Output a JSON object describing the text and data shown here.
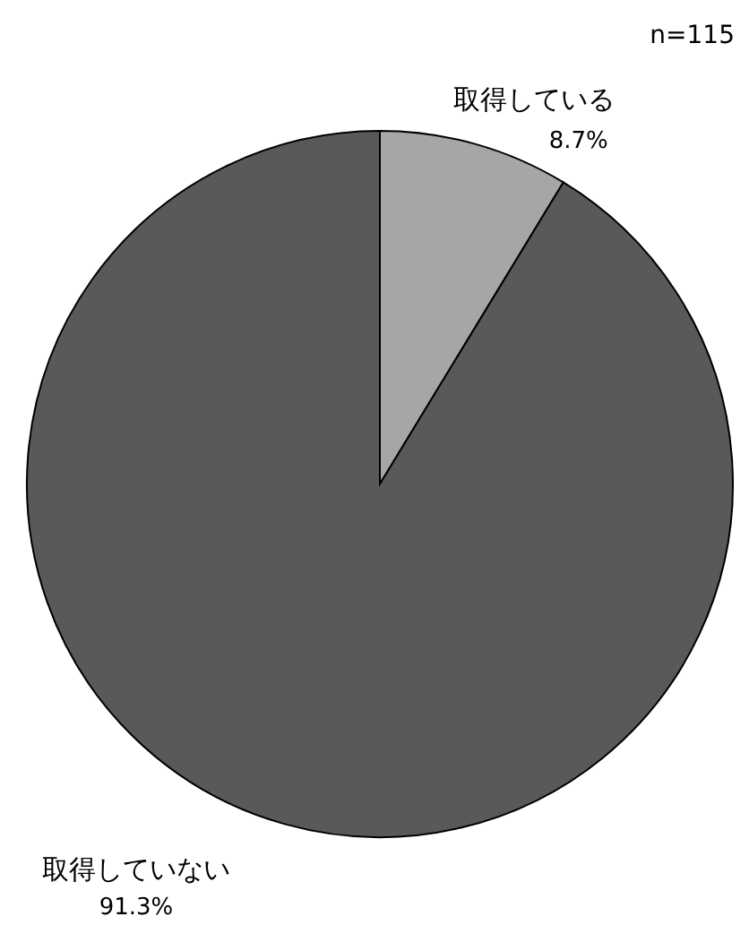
{
  "chart_data": {
    "type": "pie",
    "categories": [
      "取得している",
      "取得していない"
    ],
    "values": [
      8.7,
      91.3
    ],
    "colors": [
      "#a6a6a6",
      "#595959"
    ],
    "value_labels": [
      "8.7%",
      "91.3%"
    ],
    "annotations": [
      "n=115"
    ]
  }
}
